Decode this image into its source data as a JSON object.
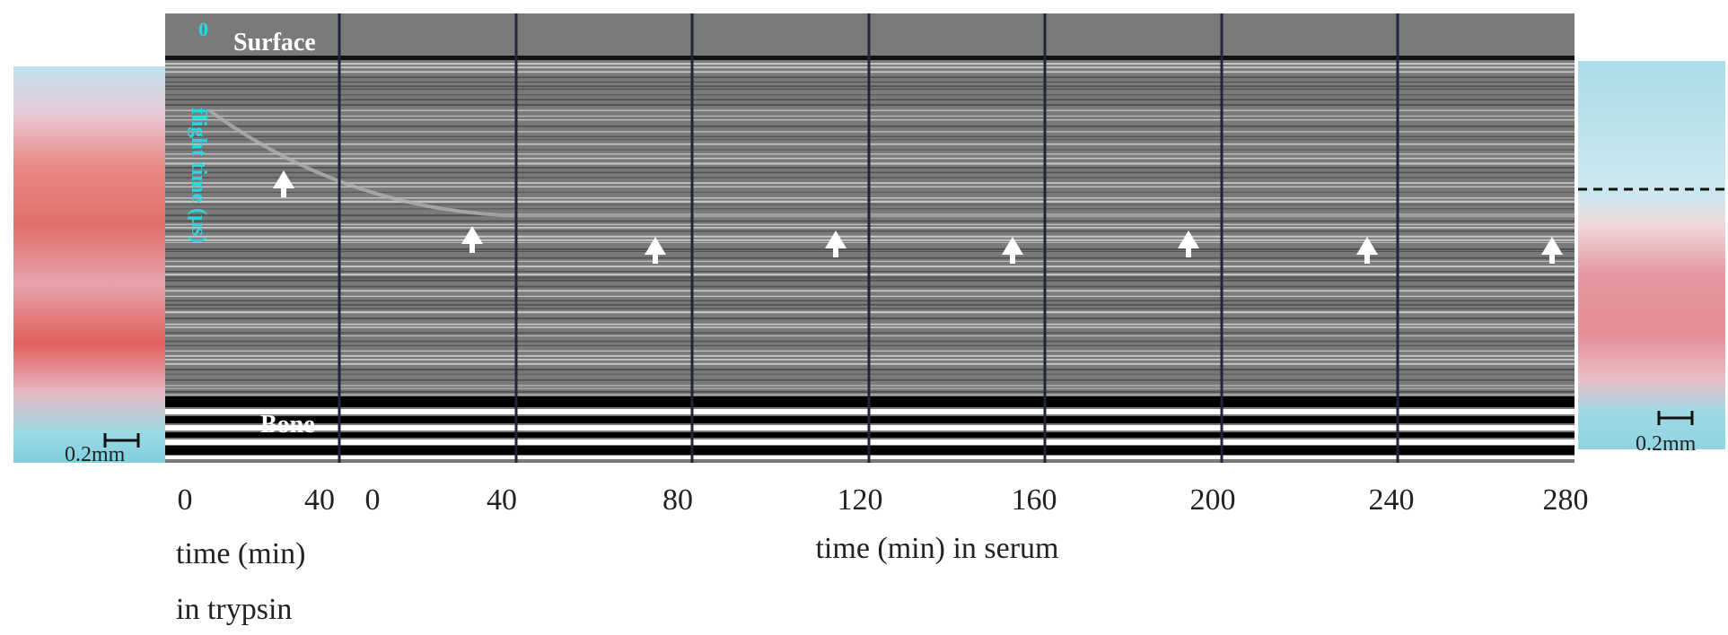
{
  "panel": {
    "surface_label": "Surface",
    "bone_label": "Bone",
    "axis_label": "flight time (µs)",
    "axis_tick": "0"
  },
  "scale_bars": [
    "0.2mm",
    "0.2mm"
  ],
  "trypsin_axis": {
    "ticks": [
      "0",
      "40"
    ],
    "label_lines": [
      "time (min)",
      "in trypsin"
    ]
  },
  "serum_axis": {
    "ticks": [
      "0",
      "40",
      "80",
      "120",
      "160",
      "200",
      "240",
      "280"
    ],
    "label": "time (min) in serum"
  }
}
